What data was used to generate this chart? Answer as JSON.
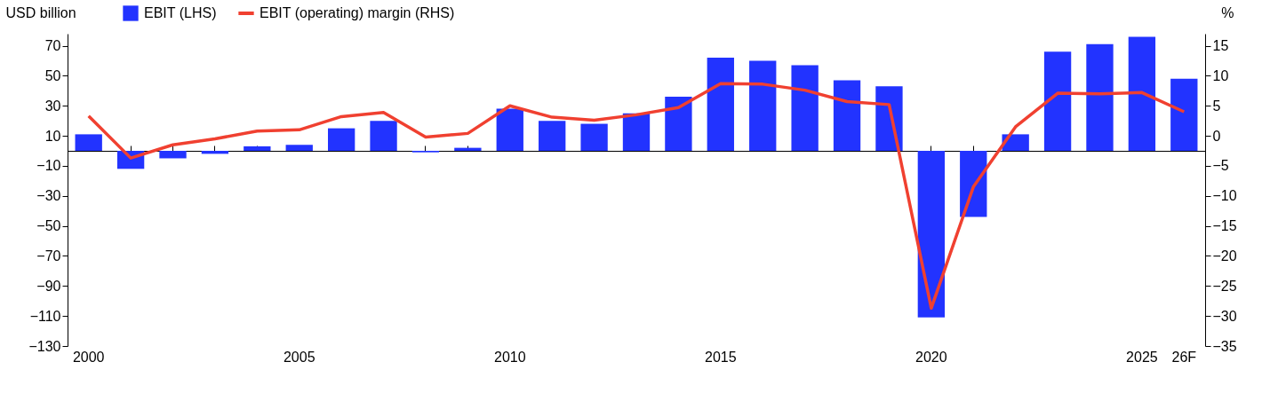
{
  "chart_data": {
    "type": "bar",
    "ylabel": "USD billion",
    "y2label": "%",
    "categories": [
      "2000",
      null,
      null,
      null,
      null,
      "2005",
      null,
      null,
      null,
      null,
      "2010",
      null,
      null,
      null,
      null,
      "2015",
      null,
      null,
      null,
      null,
      "2020",
      null,
      null,
      null,
      null,
      "2025",
      "26F"
    ],
    "series": [
      {
        "name": "EBIT (LHS)",
        "color": "#2233ff",
        "values": [
          11,
          -12,
          -5,
          -2,
          3,
          4,
          15,
          20,
          -1,
          2,
          28,
          20,
          18,
          25,
          36,
          62,
          60,
          57,
          47,
          43,
          -111,
          -44,
          11,
          66,
          71,
          76,
          48
        ]
      },
      {
        "name": "EBIT (operating) margin (RHS)",
        "type": "line",
        "axis": "y2",
        "color": "#f04030",
        "values": [
          3.3,
          -3.7,
          -1.5,
          -0.5,
          0.8,
          1.0,
          3.2,
          3.9,
          -0.2,
          0.4,
          5.0,
          3.1,
          2.6,
          3.5,
          4.7,
          8.7,
          8.6,
          7.6,
          5.7,
          5.2,
          -28.7,
          -8.5,
          1.5,
          7.1,
          7.0,
          7.2,
          4.0
        ]
      }
    ],
    "ylim": [
      -130,
      78
    ],
    "yticks": [
      -130,
      -110,
      -90,
      -70,
      -50,
      -30,
      -10,
      10,
      30,
      50,
      70
    ],
    "y2lim": [
      -35,
      17
    ],
    "y2ticks": [
      -35,
      -30,
      -25,
      -20,
      -15,
      -10,
      -5,
      0,
      5,
      10,
      15
    ],
    "grid": false,
    "legend": "top left",
    "marker": "none",
    "line_style": "solid"
  }
}
